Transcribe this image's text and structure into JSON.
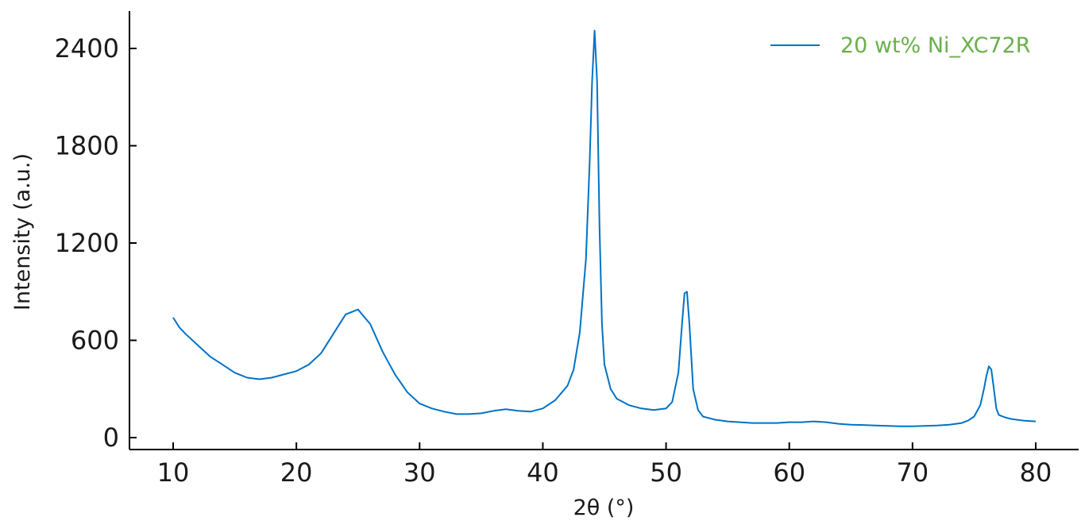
{
  "chart_data": {
    "type": "line",
    "title": "",
    "xlabel": "2θ (°)",
    "ylabel": "Intensity (a.u.)",
    "xlim": [
      10,
      80
    ],
    "ylim": [
      0,
      2400
    ],
    "xticks": [
      10,
      20,
      30,
      40,
      50,
      60,
      70,
      80
    ],
    "yticks": [
      0,
      600,
      1200,
      1800,
      2400
    ],
    "grid": false,
    "legend_position": "top-right",
    "colors": {
      "series": "#0072c6",
      "legend_text": "#6ab04c"
    },
    "series": [
      {
        "name": "20 wt% Ni_XC72R",
        "x": [
          10,
          10.5,
          11,
          12,
          13,
          14,
          15,
          16,
          17,
          18,
          19,
          20,
          21,
          22,
          23,
          24,
          25,
          26,
          27,
          28,
          29,
          30,
          31,
          32,
          33,
          34,
          35,
          36,
          37,
          38,
          39,
          40,
          41,
          42,
          42.5,
          43,
          43.5,
          43.8,
          44,
          44.2,
          44.4,
          44.6,
          44.8,
          45,
          45.5,
          46,
          47,
          48,
          49,
          50,
          50.5,
          51,
          51.3,
          51.5,
          51.7,
          51.9,
          52.2,
          52.6,
          53,
          54,
          55,
          56,
          57,
          58,
          59,
          60,
          61,
          62,
          63,
          64,
          65,
          66,
          67,
          68,
          69,
          70,
          71,
          72,
          73,
          74,
          74.5,
          75,
          75.5,
          75.8,
          76,
          76.2,
          76.4,
          76.6,
          76.8,
          77,
          77.5,
          78,
          79,
          80
        ],
        "y": [
          740,
          680,
          640,
          570,
          500,
          450,
          400,
          370,
          360,
          370,
          390,
          410,
          450,
          520,
          640,
          760,
          790,
          700,
          530,
          390,
          280,
          210,
          180,
          160,
          145,
          145,
          150,
          165,
          175,
          165,
          160,
          180,
          230,
          320,
          420,
          650,
          1100,
          1700,
          2200,
          2510,
          2200,
          1300,
          700,
          450,
          300,
          240,
          200,
          180,
          170,
          180,
          220,
          400,
          700,
          890,
          900,
          700,
          300,
          170,
          130,
          110,
          100,
          95,
          90,
          90,
          90,
          95,
          95,
          100,
          95,
          85,
          80,
          78,
          75,
          72,
          70,
          70,
          72,
          75,
          80,
          90,
          105,
          130,
          200,
          300,
          380,
          440,
          420,
          300,
          180,
          140,
          125,
          115,
          105,
          100
        ]
      }
    ]
  }
}
